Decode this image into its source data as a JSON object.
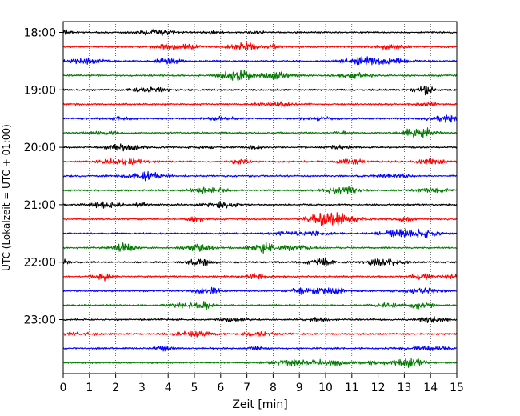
{
  "chart_data": {
    "type": "line",
    "title": "",
    "xlabel": "Zeit  [min]",
    "ylabel": "UTC (Lokalzeit = UTC + 01:00)",
    "xlim": [
      0,
      15
    ],
    "x_ticks": [
      0,
      1,
      2,
      3,
      4,
      5,
      6,
      7,
      8,
      9,
      10,
      11,
      12,
      13,
      14,
      15
    ],
    "x_tick_labels": [
      "0",
      "1",
      "2",
      "3",
      "4",
      "5",
      "6",
      "7",
      "8",
      "9",
      "10",
      "11",
      "12",
      "13",
      "14",
      "15"
    ],
    "y_tick_labels": [
      "18:00",
      "19:00",
      "20:00",
      "21:00",
      "22:00",
      "23:00"
    ],
    "vertical_grid": true,
    "grid_style": "dotted",
    "trace_minutes": 15,
    "traces_start": "18:00",
    "trace_colors_cycle": [
      "#000000",
      "#ff0000",
      "#0000ff",
      "#007a00"
    ],
    "series": [
      {
        "start": "18:00",
        "color": "#000000"
      },
      {
        "start": "18:15",
        "color": "#ff0000"
      },
      {
        "start": "18:30",
        "color": "#0000ff"
      },
      {
        "start": "18:45",
        "color": "#007a00"
      },
      {
        "start": "19:00",
        "color": "#000000"
      },
      {
        "start": "19:15",
        "color": "#ff0000"
      },
      {
        "start": "19:30",
        "color": "#0000ff"
      },
      {
        "start": "19:45",
        "color": "#007a00"
      },
      {
        "start": "20:00",
        "color": "#000000"
      },
      {
        "start": "20:15",
        "color": "#ff0000"
      },
      {
        "start": "20:30",
        "color": "#0000ff"
      },
      {
        "start": "20:45",
        "color": "#007a00"
      },
      {
        "start": "21:00",
        "color": "#000000"
      },
      {
        "start": "21:15",
        "color": "#ff0000"
      },
      {
        "start": "21:30",
        "color": "#0000ff"
      },
      {
        "start": "21:45",
        "color": "#007a00"
      },
      {
        "start": "22:00",
        "color": "#000000"
      },
      {
        "start": "22:15",
        "color": "#ff0000"
      },
      {
        "start": "22:30",
        "color": "#0000ff"
      },
      {
        "start": "22:45",
        "color": "#007a00"
      },
      {
        "start": "23:00",
        "color": "#000000"
      },
      {
        "start": "23:15",
        "color": "#ff0000"
      },
      {
        "start": "23:30",
        "color": "#0000ff"
      },
      {
        "start": "23:45",
        "color": "#007a00"
      }
    ]
  }
}
